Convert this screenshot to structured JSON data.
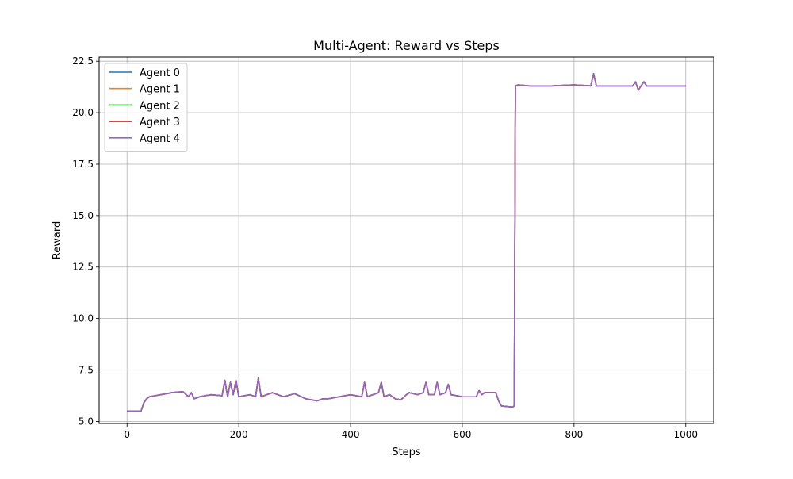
{
  "chart_data": {
    "type": "line",
    "title": "Multi-Agent: Reward vs Steps",
    "xlabel": "Steps",
    "ylabel": "Reward",
    "xlim": [
      -50,
      1050
    ],
    "ylim": [
      4.9,
      22.7
    ],
    "xticks": [
      0,
      200,
      400,
      600,
      800,
      1000
    ],
    "yticks": [
      5.0,
      7.5,
      10.0,
      12.5,
      15.0,
      17.5,
      20.0,
      22.5
    ],
    "xtick_labels": [
      "0",
      "200",
      "400",
      "600",
      "800",
      "1000"
    ],
    "ytick_labels": [
      "5.0",
      "7.5",
      "10.0",
      "12.5",
      "15.0",
      "17.5",
      "20.0",
      "22.5"
    ],
    "grid": true,
    "legend_position": "top-left",
    "x": [
      0,
      25,
      30,
      35,
      40,
      60,
      80,
      100,
      110,
      115,
      120,
      130,
      150,
      170,
      175,
      180,
      185,
      190,
      195,
      200,
      220,
      230,
      235,
      240,
      250,
      260,
      270,
      280,
      300,
      320,
      340,
      350,
      360,
      380,
      400,
      420,
      425,
      430,
      440,
      450,
      455,
      460,
      470,
      480,
      490,
      500,
      505,
      520,
      530,
      535,
      540,
      550,
      555,
      560,
      570,
      575,
      580,
      600,
      610,
      625,
      630,
      635,
      640,
      660,
      665,
      670,
      690,
      693,
      695,
      700,
      720,
      760,
      800,
      830,
      835,
      840,
      870,
      905,
      910,
      915,
      925,
      930,
      950,
      1000
    ],
    "series": [
      {
        "name": "Agent 0",
        "color": "#1f77b4",
        "values": [
          5.5,
          5.5,
          5.9,
          6.1,
          6.2,
          6.3,
          6.4,
          6.45,
          6.2,
          6.4,
          6.1,
          6.2,
          6.3,
          6.25,
          7.0,
          6.2,
          6.9,
          6.3,
          7.0,
          6.2,
          6.3,
          6.2,
          7.1,
          6.2,
          6.3,
          6.4,
          6.3,
          6.2,
          6.35,
          6.1,
          6.0,
          6.1,
          6.1,
          6.2,
          6.3,
          6.2,
          6.9,
          6.2,
          6.3,
          6.4,
          6.9,
          6.2,
          6.3,
          6.1,
          6.05,
          6.3,
          6.4,
          6.3,
          6.4,
          6.9,
          6.3,
          6.3,
          6.9,
          6.3,
          6.4,
          6.8,
          6.3,
          6.2,
          6.2,
          6.2,
          6.5,
          6.3,
          6.4,
          6.4,
          6.0,
          5.75,
          5.7,
          5.75,
          21.3,
          21.35,
          21.3,
          21.3,
          21.35,
          21.3,
          21.9,
          21.3,
          21.3,
          21.3,
          21.5,
          21.1,
          21.5,
          21.3,
          21.3,
          21.3
        ]
      },
      {
        "name": "Agent 1",
        "color": "#ff7f0e",
        "values": [
          5.5,
          5.5,
          5.9,
          6.1,
          6.2,
          6.3,
          6.4,
          6.45,
          6.2,
          6.4,
          6.1,
          6.2,
          6.3,
          6.25,
          7.0,
          6.2,
          6.9,
          6.3,
          7.0,
          6.2,
          6.3,
          6.2,
          7.1,
          6.2,
          6.3,
          6.4,
          6.3,
          6.2,
          6.35,
          6.1,
          6.0,
          6.1,
          6.1,
          6.2,
          6.3,
          6.2,
          6.9,
          6.2,
          6.3,
          6.4,
          6.9,
          6.2,
          6.3,
          6.1,
          6.05,
          6.3,
          6.4,
          6.3,
          6.4,
          6.9,
          6.3,
          6.3,
          6.9,
          6.3,
          6.4,
          6.8,
          6.3,
          6.2,
          6.2,
          6.2,
          6.5,
          6.3,
          6.4,
          6.4,
          6.0,
          5.75,
          5.7,
          5.75,
          21.3,
          21.35,
          21.3,
          21.3,
          21.35,
          21.3,
          21.9,
          21.3,
          21.3,
          21.3,
          21.5,
          21.1,
          21.5,
          21.3,
          21.3,
          21.3
        ]
      },
      {
        "name": "Agent 2",
        "color": "#2ca02c",
        "values": [
          5.5,
          5.5,
          5.9,
          6.1,
          6.2,
          6.3,
          6.4,
          6.45,
          6.2,
          6.4,
          6.1,
          6.2,
          6.3,
          6.25,
          7.0,
          6.2,
          6.9,
          6.3,
          7.0,
          6.2,
          6.3,
          6.2,
          7.1,
          6.2,
          6.3,
          6.4,
          6.3,
          6.2,
          6.35,
          6.1,
          6.0,
          6.1,
          6.1,
          6.2,
          6.3,
          6.2,
          6.9,
          6.2,
          6.3,
          6.4,
          6.9,
          6.2,
          6.3,
          6.1,
          6.05,
          6.3,
          6.4,
          6.3,
          6.4,
          6.9,
          6.3,
          6.3,
          6.9,
          6.3,
          6.4,
          6.8,
          6.3,
          6.2,
          6.2,
          6.2,
          6.5,
          6.3,
          6.4,
          6.4,
          6.0,
          5.75,
          5.7,
          5.75,
          21.3,
          21.35,
          21.3,
          21.3,
          21.35,
          21.3,
          21.9,
          21.3,
          21.3,
          21.3,
          21.5,
          21.1,
          21.5,
          21.3,
          21.3,
          21.3
        ]
      },
      {
        "name": "Agent 3",
        "color": "#d62728",
        "values": [
          5.5,
          5.5,
          5.9,
          6.1,
          6.2,
          6.3,
          6.4,
          6.45,
          6.2,
          6.4,
          6.1,
          6.2,
          6.3,
          6.25,
          7.0,
          6.2,
          6.9,
          6.3,
          7.0,
          6.2,
          6.3,
          6.2,
          7.1,
          6.2,
          6.3,
          6.4,
          6.3,
          6.2,
          6.35,
          6.1,
          6.0,
          6.1,
          6.1,
          6.2,
          6.3,
          6.2,
          6.9,
          6.2,
          6.3,
          6.4,
          6.9,
          6.2,
          6.3,
          6.1,
          6.05,
          6.3,
          6.4,
          6.3,
          6.4,
          6.9,
          6.3,
          6.3,
          6.9,
          6.3,
          6.4,
          6.8,
          6.3,
          6.2,
          6.2,
          6.2,
          6.5,
          6.3,
          6.4,
          6.4,
          6.0,
          5.75,
          5.7,
          5.75,
          21.3,
          21.35,
          21.3,
          21.3,
          21.35,
          21.3,
          21.9,
          21.3,
          21.3,
          21.3,
          21.5,
          21.1,
          21.5,
          21.3,
          21.3,
          21.3
        ]
      },
      {
        "name": "Agent 4",
        "color": "#9467bd",
        "values": [
          5.5,
          5.5,
          5.9,
          6.1,
          6.2,
          6.3,
          6.4,
          6.45,
          6.2,
          6.4,
          6.1,
          6.2,
          6.3,
          6.25,
          7.0,
          6.2,
          6.9,
          6.3,
          7.0,
          6.2,
          6.3,
          6.2,
          7.1,
          6.2,
          6.3,
          6.4,
          6.3,
          6.2,
          6.35,
          6.1,
          6.0,
          6.1,
          6.1,
          6.2,
          6.3,
          6.2,
          6.9,
          6.2,
          6.3,
          6.4,
          6.9,
          6.2,
          6.3,
          6.1,
          6.05,
          6.3,
          6.4,
          6.3,
          6.4,
          6.9,
          6.3,
          6.3,
          6.9,
          6.3,
          6.4,
          6.8,
          6.3,
          6.2,
          6.2,
          6.2,
          6.5,
          6.3,
          6.4,
          6.4,
          6.0,
          5.75,
          5.7,
          5.75,
          21.3,
          21.35,
          21.3,
          21.3,
          21.35,
          21.3,
          21.9,
          21.3,
          21.3,
          21.3,
          21.5,
          21.1,
          21.5,
          21.3,
          21.3,
          21.3
        ]
      }
    ]
  }
}
